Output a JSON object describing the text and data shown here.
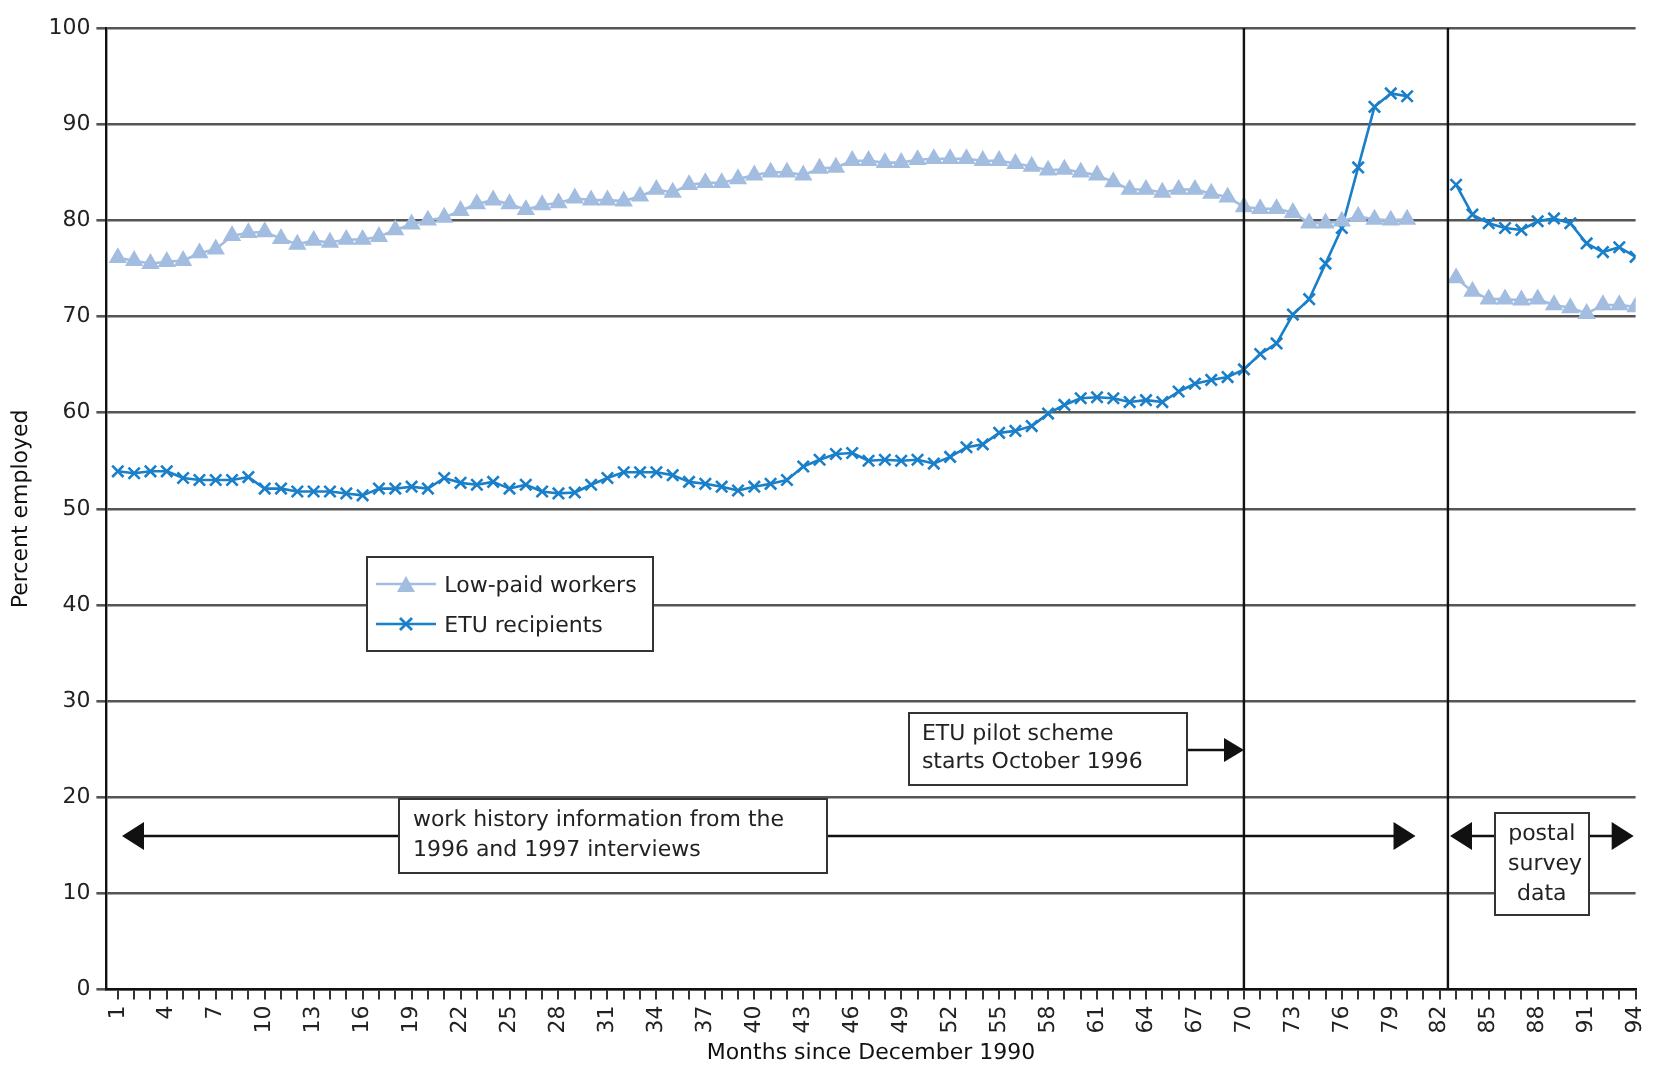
{
  "chart_data": {
    "type": "line",
    "xlabel": "Months since December 1990",
    "ylabel": "Percent employed",
    "x": [
      1,
      2,
      3,
      4,
      5,
      6,
      7,
      8,
      9,
      10,
      11,
      12,
      13,
      14,
      15,
      16,
      17,
      18,
      19,
      20,
      21,
      22,
      23,
      24,
      25,
      26,
      27,
      28,
      29,
      30,
      31,
      32,
      33,
      34,
      35,
      36,
      37,
      38,
      39,
      40,
      41,
      42,
      43,
      44,
      45,
      46,
      47,
      48,
      49,
      50,
      51,
      52,
      53,
      54,
      55,
      56,
      57,
      58,
      59,
      60,
      61,
      62,
      63,
      64,
      65,
      66,
      67,
      68,
      69,
      70,
      71,
      72,
      73,
      74,
      75,
      76,
      77,
      78,
      79,
      80,
      81,
      82,
      83,
      84,
      85,
      86,
      87,
      88,
      89,
      90,
      91,
      92,
      93,
      94
    ],
    "series": [
      {
        "name": "Low-paid workers",
        "color": "#a3bde0",
        "marker": "triangle",
        "values": [
          76.1,
          75.8,
          75.5,
          75.7,
          75.8,
          76.6,
          77.0,
          78.4,
          78.7,
          78.8,
          78.1,
          77.5,
          77.9,
          77.7,
          78.0,
          78.0,
          78.3,
          79.0,
          79.6,
          80.0,
          80.3,
          81.0,
          81.7,
          82.1,
          81.7,
          81.1,
          81.6,
          81.8,
          82.3,
          82.1,
          82.1,
          82.0,
          82.5,
          83.2,
          82.9,
          83.7,
          83.9,
          83.9,
          84.3,
          84.7,
          85.0,
          85.0,
          84.7,
          85.4,
          85.5,
          86.2,
          86.2,
          86.0,
          86.0,
          86.3,
          86.4,
          86.4,
          86.4,
          86.2,
          86.2,
          85.9,
          85.6,
          85.2,
          85.3,
          85.0,
          84.7,
          84.0,
          83.2,
          83.2,
          82.9,
          83.2,
          83.2,
          82.8,
          82.4,
          81.4,
          81.2,
          81.2,
          80.8,
          79.7,
          79.7,
          79.9,
          80.4,
          80.1,
          80.0,
          80.1,
          null,
          null,
          74.0,
          72.6,
          71.8,
          71.8,
          71.7,
          71.8,
          71.2,
          70.9,
          70.3,
          71.2,
          71.2,
          71.0
        ]
      },
      {
        "name": "ETU recipients",
        "color": "#1a7fc9",
        "marker": "cross",
        "values": [
          53.9,
          53.7,
          53.9,
          53.9,
          53.2,
          53.0,
          53.0,
          53.0,
          53.3,
          52.1,
          52.1,
          51.8,
          51.8,
          51.8,
          51.6,
          51.4,
          52.1,
          52.1,
          52.3,
          52.1,
          53.2,
          52.7,
          52.5,
          52.8,
          52.1,
          52.5,
          51.8,
          51.6,
          51.7,
          52.5,
          53.2,
          53.8,
          53.8,
          53.8,
          53.5,
          52.8,
          52.6,
          52.3,
          51.9,
          52.3,
          52.6,
          53.0,
          54.4,
          55.1,
          55.7,
          55.8,
          55.0,
          55.1,
          55.0,
          55.1,
          54.7,
          55.4,
          56.4,
          56.7,
          57.9,
          58.1,
          58.6,
          59.9,
          60.8,
          61.5,
          61.6,
          61.5,
          61.1,
          61.3,
          61.1,
          62.2,
          63.0,
          63.4,
          63.7,
          64.5,
          66.1,
          67.2,
          70.2,
          71.8,
          75.5,
          79.2,
          85.5,
          91.8,
          93.2,
          92.9,
          null,
          null,
          83.7,
          80.6,
          79.7,
          79.2,
          79.0,
          79.9,
          80.2,
          79.7,
          77.6,
          76.7,
          77.2,
          76.2
        ]
      }
    ],
    "xlim": [
      0.3,
      94
    ],
    "xticks": [
      1,
      {
        "value": 2,
        "label": null
      },
      {
        "value": 3,
        "label": null
      },
      4,
      {
        "value": 5,
        "label": null
      },
      {
        "value": 6,
        "label": null
      },
      7,
      {
        "value": 8,
        "label": null
      },
      {
        "value": 9,
        "label": null
      },
      10,
      {
        "value": 11,
        "label": null
      },
      {
        "value": 12,
        "label": null
      },
      13,
      {
        "value": 14,
        "label": null
      },
      {
        "value": 15,
        "label": null
      },
      16,
      {
        "value": 17,
        "label": null
      },
      {
        "value": 18,
        "label": null
      },
      19,
      {
        "value": 20,
        "label": null
      },
      {
        "value": 21,
        "label": null
      },
      22,
      {
        "value": 23,
        "label": null
      },
      {
        "value": 24,
        "label": null
      },
      25,
      {
        "value": 26,
        "label": null
      },
      {
        "value": 27,
        "label": null
      },
      28,
      {
        "value": 29,
        "label": null
      },
      {
        "value": 30,
        "label": null
      },
      31,
      {
        "value": 32,
        "label": null
      },
      {
        "value": 33,
        "label": null
      },
      34,
      {
        "value": 35,
        "label": null
      },
      {
        "value": 36,
        "label": null
      },
      37,
      {
        "value": 38,
        "label": null
      },
      {
        "value": 39,
        "label": null
      },
      40,
      {
        "value": 41,
        "label": null
      },
      {
        "value": 42,
        "label": null
      },
      43,
      {
        "value": 44,
        "label": null
      },
      {
        "value": 45,
        "label": null
      },
      46,
      {
        "value": 47,
        "label": null
      },
      {
        "value": 48,
        "label": null
      },
      49,
      {
        "value": 50,
        "label": null
      },
      {
        "value": 51,
        "label": null
      },
      52,
      {
        "value": 53,
        "label": null
      },
      {
        "value": 54,
        "label": null
      },
      55,
      {
        "value": 56,
        "label": null
      },
      {
        "value": 57,
        "label": null
      },
      58,
      {
        "value": 59,
        "label": null
      },
      {
        "value": 60,
        "label": null
      },
      61,
      {
        "value": 62,
        "label": null
      },
      {
        "value": 63,
        "label": null
      },
      64,
      {
        "value": 65,
        "label": null
      },
      {
        "value": 66,
        "label": null
      },
      67,
      {
        "value": 68,
        "label": null
      },
      {
        "value": 69,
        "label": null
      },
      70,
      {
        "value": 71,
        "label": null
      },
      {
        "value": 72,
        "label": null
      },
      73,
      {
        "value": 74,
        "label": null
      },
      {
        "value": 75,
        "label": null
      },
      76,
      {
        "value": 77,
        "label": null
      },
      {
        "value": 78,
        "label": null
      },
      79,
      {
        "value": 80,
        "label": null
      },
      {
        "value": 81,
        "label": null
      },
      82,
      {
        "value": 83,
        "label": null
      },
      {
        "value": 84,
        "label": null
      },
      85,
      {
        "value": 86,
        "label": null
      },
      {
        "value": 87,
        "label": null
      },
      88,
      {
        "value": 89,
        "label": null
      },
      {
        "value": 90,
        "label": null
      },
      91,
      {
        "value": 92,
        "label": null
      },
      {
        "value": 93,
        "label": null
      },
      94
    ],
    "ylim": [
      0,
      100
    ],
    "yticks": [
      0,
      10,
      20,
      30,
      40,
      50,
      60,
      70,
      80,
      90,
      100
    ],
    "grid": "y",
    "legend": "left",
    "ref_lines": [
      {
        "axis": "x",
        "value": 70,
        "label": null
      },
      {
        "axis": "x",
        "value": 82.5,
        "label": null
      }
    ],
    "annotations": [
      "ETU pilot scheme starts October 1996",
      "work history information from the 1996 and 1997 interviews",
      "postal survey data"
    ]
  }
}
